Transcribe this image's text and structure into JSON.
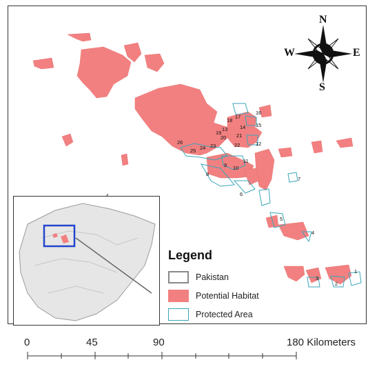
{
  "compass": {
    "north": "N",
    "south": "S",
    "east": "E",
    "west": "W"
  },
  "legend": {
    "title": "Legend",
    "items": [
      {
        "label": "Pakistan",
        "color": "#d9d9d9",
        "stroke": "#888888"
      },
      {
        "label": "Potential Habitat",
        "color": "#f28080",
        "stroke": "#e06060"
      },
      {
        "label": "Protected Area",
        "color": "#ffffff",
        "stroke": "#3aa6b9"
      }
    ]
  },
  "scale_bar": {
    "labels": [
      "0",
      "45",
      "90",
      "180 Kilometers"
    ]
  },
  "site_labels": [
    "1",
    "2",
    "3",
    "4",
    "5",
    "6",
    "7",
    "8",
    "9",
    "10",
    "11",
    "12",
    "13",
    "14",
    "15",
    "16",
    "17",
    "18",
    "19",
    "20",
    "21",
    "22",
    "23",
    "24",
    "25",
    "26"
  ],
  "colors": {
    "habitat": "#f28080",
    "protected": "#3aa6b9",
    "inset_box": "#2244cc"
  }
}
